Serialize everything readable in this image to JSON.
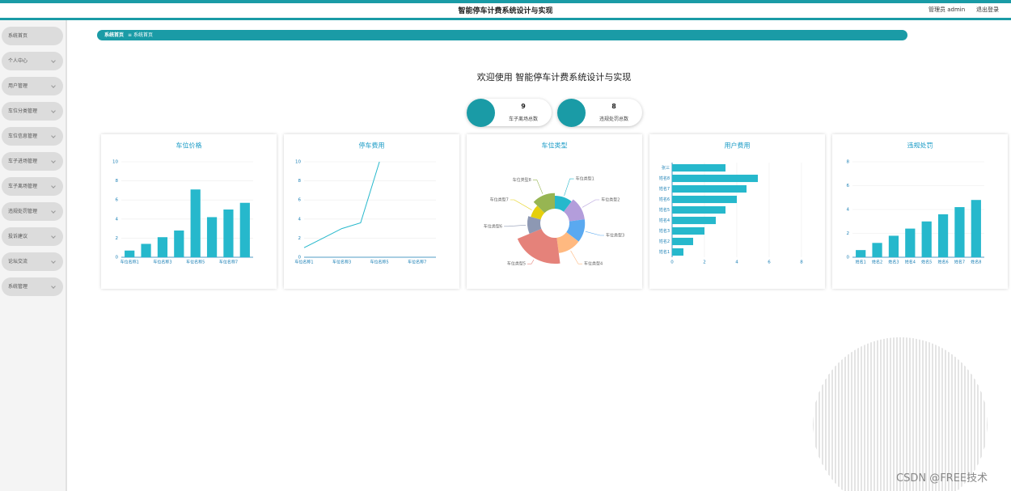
{
  "header": {
    "title": "智能停车计费系统设计与实现",
    "user": "管理员 admin",
    "logout": "退出登录"
  },
  "menu": [
    "系统首页",
    "个人中心",
    "用户管理",
    "车位分类管理",
    "车位信息管理",
    "车子进场管理",
    "车子离场管理",
    "违规处罚管理",
    "投诉建议",
    "论坛交流",
    "系统管理"
  ],
  "breadcrumb": [
    "系统首页",
    "系统首页"
  ],
  "welcome": "欢迎使用 智能停车计费系统设计与实现",
  "stats": [
    {
      "value": 9,
      "label": "车子离场总数"
    },
    {
      "value": 8,
      "label": "违规处罚总数"
    }
  ],
  "chart_data": [
    {
      "type": "bar",
      "title": "车位价格",
      "categories": [
        "车位名称1",
        null,
        "车位名称3",
        null,
        "车位名称5",
        null,
        "车位名称7",
        null
      ],
      "values": [
        0.7,
        1.4,
        2.1,
        2.8,
        7.1,
        4.2,
        5.0,
        5.7
      ],
      "color": "#26b8cc",
      "ylim": [
        0,
        10
      ],
      "yticks": [
        0,
        2,
        4,
        6,
        8,
        10
      ],
      "grid": true
    },
    {
      "type": "line",
      "title": "停车费用",
      "categories": [
        "车位名称1",
        null,
        "车位名称3",
        null,
        "车位名称5",
        null,
        "车位名称7",
        null
      ],
      "values": [
        1,
        2,
        3,
        3.6,
        10,
        null,
        null,
        null
      ],
      "color": "#26b8cc",
      "ylim": [
        0,
        10
      ],
      "yticks": [
        0,
        2,
        4,
        6,
        8,
        10
      ],
      "grid": true
    },
    {
      "type": "pie",
      "title": "车位类型",
      "categories": [
        "车位类型1",
        "车位类型2",
        "车位类型3",
        "车位类型4",
        "车位类型5",
        "车位类型6",
        "车位类型7",
        "车位类型8"
      ],
      "values": [
        5,
        6,
        6,
        6,
        10,
        5,
        4,
        6
      ],
      "colors": [
        "#26b8cc",
        "#b39ddb",
        "#5aa9f0",
        "#ffb980",
        "#e5827a",
        "#8d98b3",
        "#e5cf0d",
        "#97b552"
      ]
    },
    {
      "type": "bar",
      "horizontal": true,
      "title": "用户费用",
      "categories": [
        "姓名1",
        "姓名2",
        "姓名3",
        "姓名4",
        "姓名5",
        "姓名6",
        "姓名7",
        "姓名8",
        "张三"
      ],
      "values": [
        0.7,
        1.3,
        2.0,
        2.7,
        3.3,
        4.0,
        4.6,
        5.3,
        3.3
      ],
      "color": "#26b8cc",
      "xlim": [
        0,
        8
      ],
      "xticks": [
        0,
        2,
        4,
        6,
        8
      ],
      "grid": true
    },
    {
      "type": "bar",
      "title": "违规处罚",
      "categories": [
        "姓名1",
        "姓名2",
        "姓名3",
        "姓名4",
        "姓名5",
        "姓名6",
        "姓名7",
        "姓名8"
      ],
      "values": [
        0.6,
        1.2,
        1.8,
        2.4,
        3.0,
        3.6,
        4.2,
        4.8
      ],
      "color": "#26b8cc",
      "ylim": [
        0,
        8
      ],
      "yticks": [
        0,
        2,
        4,
        6,
        8
      ],
      "grid": true
    }
  ],
  "watermark": "CSDN @FREE技术"
}
